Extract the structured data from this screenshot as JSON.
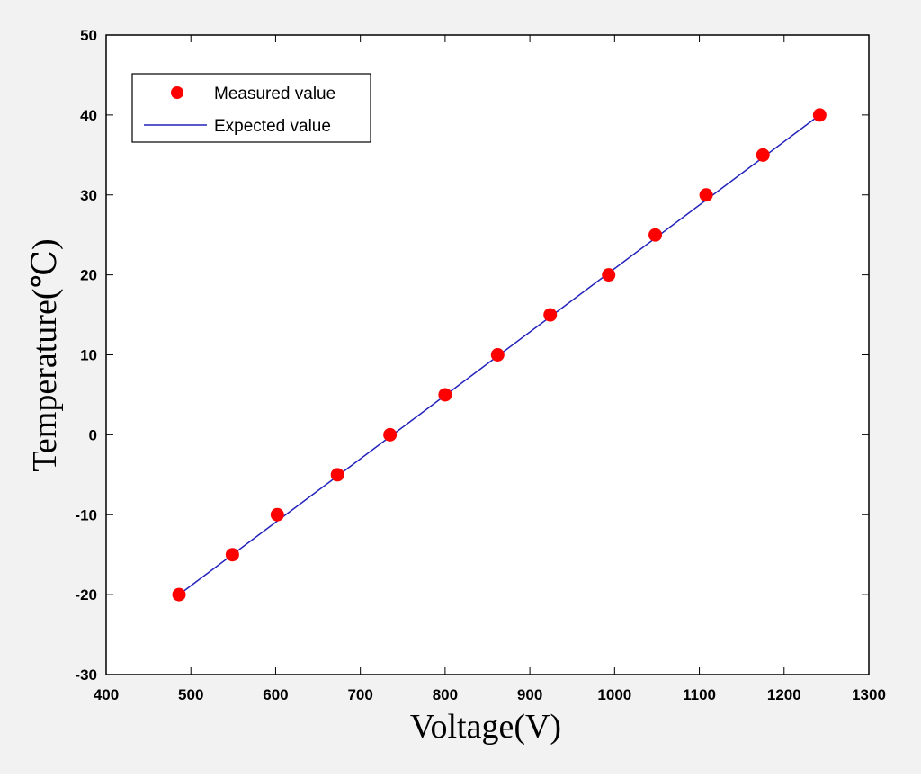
{
  "chart_data": {
    "type": "scatter",
    "title": "",
    "xlabel": "Voltage(V)",
    "ylabel": "Temperature(℃)",
    "xlim": [
      400,
      1300
    ],
    "ylim": [
      -30,
      50
    ],
    "xticks": [
      400,
      500,
      600,
      700,
      800,
      900,
      1000,
      1100,
      1200,
      1300
    ],
    "yticks": [
      -30,
      -20,
      -10,
      0,
      10,
      20,
      30,
      40,
      50
    ],
    "grid": false,
    "legend_position": "top-left",
    "series": [
      {
        "name": "Measured value",
        "kind": "markers",
        "color": "#ff0000",
        "x": [
          486,
          549,
          602,
          673,
          735,
          800,
          862,
          924,
          993,
          1048,
          1108,
          1175,
          1242
        ],
        "y": [
          -20,
          -15,
          -10,
          -5,
          0,
          5,
          10,
          15,
          20,
          25,
          30,
          35,
          40
        ]
      },
      {
        "name": "Expected value",
        "kind": "line",
        "color": "#2222bb",
        "x": [
          486,
          1242
        ],
        "y": [
          -20,
          40
        ]
      }
    ]
  }
}
